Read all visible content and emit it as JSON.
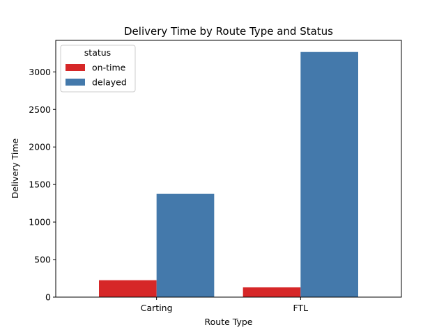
{
  "chart_data": {
    "type": "bar",
    "title": "Delivery Time by Route Type and Status",
    "xlabel": "Route Type",
    "ylabel": "Delivery Time",
    "categories": [
      "Carting",
      "FTL"
    ],
    "series": [
      {
        "name": "on-time",
        "values": [
          225,
          130
        ],
        "color": "#d62728"
      },
      {
        "name": "delayed",
        "values": [
          1375,
          3265
        ],
        "color": "#4479ab"
      }
    ],
    "ylim": [
      0,
      3420
    ],
    "yticks": [
      0,
      500,
      1000,
      1500,
      2000,
      2500,
      3000
    ],
    "grid": false,
    "legend": {
      "title": "status",
      "placement": "top-left"
    }
  }
}
